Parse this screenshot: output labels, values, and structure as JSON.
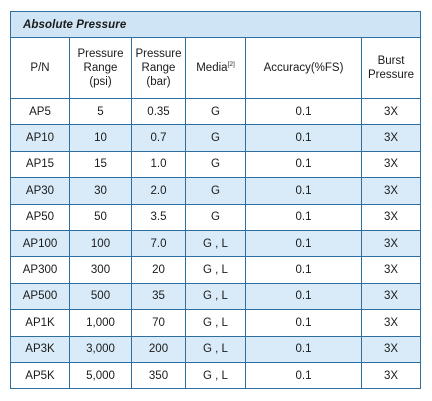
{
  "table": {
    "title": "Absolute Pressure",
    "headers": {
      "pn": "P/N",
      "pressure_psi": [
        "Pressure",
        "Range",
        "(psi)"
      ],
      "pressure_bar": [
        "Pressure",
        "Range",
        "(bar)"
      ],
      "media": "Media",
      "media_note": "[2]",
      "accuracy": "Accuracy(%FS)",
      "burst": [
        "Burst",
        "Pressure"
      ]
    },
    "rows": [
      {
        "pn": "AP5",
        "psi": "5",
        "bar": "0.35",
        "media": "G",
        "accuracy": "0.1",
        "burst": "3X"
      },
      {
        "pn": "AP10",
        "psi": "10",
        "bar": "0.7",
        "media": "G",
        "accuracy": "0.1",
        "burst": "3X"
      },
      {
        "pn": "AP15",
        "psi": "15",
        "bar": "1.0",
        "media": "G",
        "accuracy": "0.1",
        "burst": "3X"
      },
      {
        "pn": "AP30",
        "psi": "30",
        "bar": "2.0",
        "media": "G",
        "accuracy": "0.1",
        "burst": "3X"
      },
      {
        "pn": "AP50",
        "psi": "50",
        "bar": "3.5",
        "media": "G",
        "accuracy": "0.1",
        "burst": "3X"
      },
      {
        "pn": "AP100",
        "psi": "100",
        "bar": "7.0",
        "media": "G , L",
        "accuracy": "0.1",
        "burst": "3X"
      },
      {
        "pn": "AP300",
        "psi": "300",
        "bar": "20",
        "media": "G , L",
        "accuracy": "0.1",
        "burst": "3X"
      },
      {
        "pn": "AP500",
        "psi": "500",
        "bar": "35",
        "media": "G , L",
        "accuracy": "0.1",
        "burst": "3X"
      },
      {
        "pn": "AP1K",
        "psi": "1,000",
        "bar": "70",
        "media": "G , L",
        "accuracy": "0.1",
        "burst": "3X"
      },
      {
        "pn": "AP3K",
        "psi": "3,000",
        "bar": "200",
        "media": "G , L",
        "accuracy": "0.1",
        "burst": "3X"
      },
      {
        "pn": "AP5K",
        "psi": "5,000",
        "bar": "350",
        "media": "G , L",
        "accuracy": "0.1",
        "burst": "3X"
      }
    ],
    "colors": {
      "border": "#2f6f9f",
      "title_bg": "#cfe4f4",
      "shaded_row_bg": "#d9ebf8"
    }
  }
}
